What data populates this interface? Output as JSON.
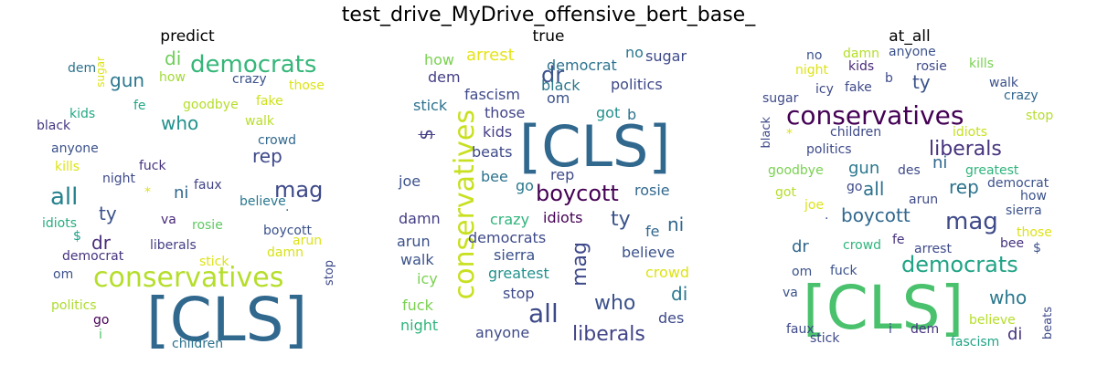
{
  "figure_title": "test_drive_MyDrive_offensive_bert_base_",
  "panels": [
    {
      "title": "predict",
      "words": [
        {
          "t": "[CLS]",
          "c": "#31688e"
        },
        {
          "t": "conservatives",
          "c": "#b5de2b"
        },
        {
          "t": "democrats",
          "c": "#35b779"
        },
        {
          "t": "di",
          "c": "#6ece58"
        },
        {
          "t": "gun",
          "c": "#2a788e"
        },
        {
          "t": "all",
          "c": "#26828e"
        },
        {
          "t": "mag",
          "c": "#3e4a89"
        },
        {
          "t": "who",
          "c": "#21918c"
        },
        {
          "t": "rep",
          "c": "#3e4989"
        },
        {
          "t": "ty",
          "c": "#3b528b"
        },
        {
          "t": "ni",
          "c": "#31688e"
        },
        {
          "t": "dr",
          "c": "#472d7b"
        },
        {
          "t": "dem",
          "c": "#2c728e"
        },
        {
          "t": "sugar",
          "c": "#dde318"
        },
        {
          "t": "how",
          "c": "#a2da37"
        },
        {
          "t": "crazy",
          "c": "#3b528b"
        },
        {
          "t": "those",
          "c": "#dde318"
        },
        {
          "t": "fake",
          "c": "#cde11d"
        },
        {
          "t": "goodbye",
          "c": "#b5de2b"
        },
        {
          "t": "fe",
          "c": "#21a685"
        },
        {
          "t": "kids",
          "c": "#22a884"
        },
        {
          "t": "black",
          "c": "#443983"
        },
        {
          "t": "walk",
          "c": "#b8de29"
        },
        {
          "t": "crowd",
          "c": "#31688e"
        },
        {
          "t": "anyone",
          "c": "#3b528b"
        },
        {
          "t": "kills",
          "c": "#dde318"
        },
        {
          "t": "night",
          "c": "#3e4a89"
        },
        {
          "t": "fuck",
          "c": "#46337e"
        },
        {
          "t": "faux",
          "c": "#414487"
        },
        {
          "t": "*",
          "c": "#dde318"
        },
        {
          "t": ".",
          "c": "#2c728e"
        },
        {
          "t": "believe",
          "c": "#2a788e"
        },
        {
          "t": "idiots",
          "c": "#27ad81"
        },
        {
          "t": "va",
          "c": "#482878"
        },
        {
          "t": "rosie",
          "c": "#5ec962"
        },
        {
          "t": "$",
          "c": "#1fa088"
        },
        {
          "t": "boycott",
          "c": "#3b528b"
        },
        {
          "t": "arun",
          "c": "#dde318"
        },
        {
          "t": "liberals",
          "c": "#433e85"
        },
        {
          "t": "democrat",
          "c": "#46337e"
        },
        {
          "t": "damn",
          "c": "#d8e219"
        },
        {
          "t": "stick",
          "c": "#dde318"
        },
        {
          "t": "stop",
          "c": "#3e4a89"
        },
        {
          "t": "om",
          "c": "#3b528b"
        },
        {
          "t": "politics",
          "c": "#addc30"
        },
        {
          "t": "go",
          "c": "#440154"
        },
        {
          "t": "i",
          "c": "#52c569"
        },
        {
          "t": "children",
          "c": "#2c728e"
        }
      ]
    },
    {
      "title": "true",
      "words": [
        {
          "t": "[CLS]",
          "c": "#31688e"
        },
        {
          "t": "conservatives",
          "c": "#c8e020"
        },
        {
          "t": "boycott",
          "c": "#440154"
        },
        {
          "t": "all",
          "c": "#3e4989"
        },
        {
          "t": "liberals",
          "c": "#414487"
        },
        {
          "t": "who",
          "c": "#3b528b"
        },
        {
          "t": "mag",
          "c": "#3e4989"
        },
        {
          "t": "ty",
          "c": "#3b528b"
        },
        {
          "t": "ni",
          "c": "#31688e"
        },
        {
          "t": "di",
          "c": "#2a788e"
        },
        {
          "t": "dr",
          "c": "#3b528b"
        },
        {
          "t": "$",
          "c": "#433e85"
        },
        {
          "t": "arrest",
          "c": "#e5e419"
        },
        {
          "t": "democrat",
          "c": "#2c728e"
        },
        {
          "t": "no",
          "c": "#2a788e"
        },
        {
          "t": "sugar",
          "c": "#3e4a89"
        },
        {
          "t": "how",
          "c": "#7ad151"
        },
        {
          "t": "dem",
          "c": "#433e85"
        },
        {
          "t": "black",
          "c": "#2a788e"
        },
        {
          "t": "politics",
          "c": "#3e4989"
        },
        {
          "t": "fascism",
          "c": "#3e4a89"
        },
        {
          "t": "om",
          "c": "#3b528b"
        },
        {
          "t": "stick",
          "c": "#2c728e"
        },
        {
          "t": "those",
          "c": "#414487"
        },
        {
          "t": "got",
          "c": "#21918c"
        },
        {
          "t": "b",
          "c": "#2c728e"
        },
        {
          "t": "kids",
          "c": "#433e85"
        },
        {
          "t": "beats",
          "c": "#3e4a89"
        },
        {
          "t": "rep",
          "c": "#3e4a89"
        },
        {
          "t": "joe",
          "c": "#3b528b"
        },
        {
          "t": "bee",
          "c": "#2c728e"
        },
        {
          "t": "go",
          "c": "#2a788e"
        },
        {
          "t": "rosie",
          "c": "#31688e"
        },
        {
          "t": "damn",
          "c": "#433e85"
        },
        {
          "t": "crazy",
          "c": "#2fb47c"
        },
        {
          "t": "idiots",
          "c": "#440154"
        },
        {
          "t": "fe",
          "c": "#31688e"
        },
        {
          "t": "arun",
          "c": "#3b528b"
        },
        {
          "t": "democrats",
          "c": "#3e4a89"
        },
        {
          "t": "believe",
          "c": "#3b528b"
        },
        {
          "t": "walk",
          "c": "#3b528b"
        },
        {
          "t": "sierra",
          "c": "#3b528b"
        },
        {
          "t": "icy",
          "c": "#7ad151"
        },
        {
          "t": "greatest",
          "c": "#21918c"
        },
        {
          "t": "crowd",
          "c": "#dde318"
        },
        {
          "t": "stop",
          "c": "#3e4a89"
        },
        {
          "t": "fuck",
          "c": "#7ad151"
        },
        {
          "t": "night",
          "c": "#2fb47c"
        },
        {
          "t": "des",
          "c": "#3e4a89"
        },
        {
          "t": "anyone",
          "c": "#3e4a89"
        }
      ]
    },
    {
      "title": "at_all",
      "words": [
        {
          "t": "[CLS]",
          "c": "#4ac16d"
        },
        {
          "t": "conservatives",
          "c": "#440154"
        },
        {
          "t": "democrats",
          "c": "#20a386"
        },
        {
          "t": "mag",
          "c": "#3e4a89"
        },
        {
          "t": "liberals",
          "c": "#46337e"
        },
        {
          "t": "boycott",
          "c": "#31688e"
        },
        {
          "t": "who",
          "c": "#2a788e"
        },
        {
          "t": "all",
          "c": "#2c728e"
        },
        {
          "t": "rep",
          "c": "#2c728e"
        },
        {
          "t": "gun",
          "c": "#2a788e"
        },
        {
          "t": "ni",
          "c": "#31688e"
        },
        {
          "t": "ty",
          "c": "#3b528b"
        },
        {
          "t": "dr",
          "c": "#31688e"
        },
        {
          "t": "di",
          "c": "#46337e"
        },
        {
          "t": "no",
          "c": "#3b528b"
        },
        {
          "t": "damn",
          "c": "#b5de2b"
        },
        {
          "t": "anyone",
          "c": "#3b528b"
        },
        {
          "t": "night",
          "c": "#dde318"
        },
        {
          "t": "kids",
          "c": "#482878"
        },
        {
          "t": "rosie",
          "c": "#3e4a89"
        },
        {
          "t": "kills",
          "c": "#7ad151"
        },
        {
          "t": "b",
          "c": "#3e4a89"
        },
        {
          "t": "icy",
          "c": "#3e4a89"
        },
        {
          "t": "fake",
          "c": "#3e4a89"
        },
        {
          "t": "sugar",
          "c": "#3e4a89"
        },
        {
          "t": "walk",
          "c": "#3b528b"
        },
        {
          "t": "crazy",
          "c": "#31688e"
        },
        {
          "t": "stop",
          "c": "#b5de2b"
        },
        {
          "t": "black",
          "c": "#3e4a89"
        },
        {
          "t": "children",
          "c": "#3e4a89"
        },
        {
          "t": "idiots",
          "c": "#c8e020"
        },
        {
          "t": "*",
          "c": "#dde318"
        },
        {
          "t": "politics",
          "c": "#3e4a89"
        },
        {
          "t": "goodbye",
          "c": "#7ad151"
        },
        {
          "t": "des",
          "c": "#3e4a89"
        },
        {
          "t": "greatest",
          "c": "#2fb47c"
        },
        {
          "t": "democrat",
          "c": "#3b528b"
        },
        {
          "t": "got",
          "c": "#b5de2b"
        },
        {
          "t": "go",
          "c": "#3e4a89"
        },
        {
          "t": "arun",
          "c": "#3e4a89"
        },
        {
          "t": "how",
          "c": "#3b528b"
        },
        {
          "t": "joe",
          "c": "#dde318"
        },
        {
          "t": "sierra",
          "c": "#3b528b"
        },
        {
          "t": ".",
          "c": "#3b528b"
        },
        {
          "t": "those",
          "c": "#dde318"
        },
        {
          "t": "crowd",
          "c": "#2fb47c"
        },
        {
          "t": "fe",
          "c": "#46337e"
        },
        {
          "t": "arrest",
          "c": "#3e4a89"
        },
        {
          "t": "bee",
          "c": "#46337e"
        },
        {
          "t": "$",
          "c": "#3b528b"
        },
        {
          "t": "om",
          "c": "#3b528b"
        },
        {
          "t": "fuck",
          "c": "#3b528b"
        },
        {
          "t": "va",
          "c": "#3b528b"
        },
        {
          "t": "faux",
          "c": "#3e4a89"
        },
        {
          "t": "stick",
          "c": "#3e4a89"
        },
        {
          "t": "i",
          "c": "#3e4a89"
        },
        {
          "t": "dem",
          "c": "#46337e"
        },
        {
          "t": "fascism",
          "c": "#20a386"
        },
        {
          "t": "believe",
          "c": "#b5de2b"
        },
        {
          "t": "beats",
          "c": "#3e4a89"
        }
      ]
    }
  ]
}
